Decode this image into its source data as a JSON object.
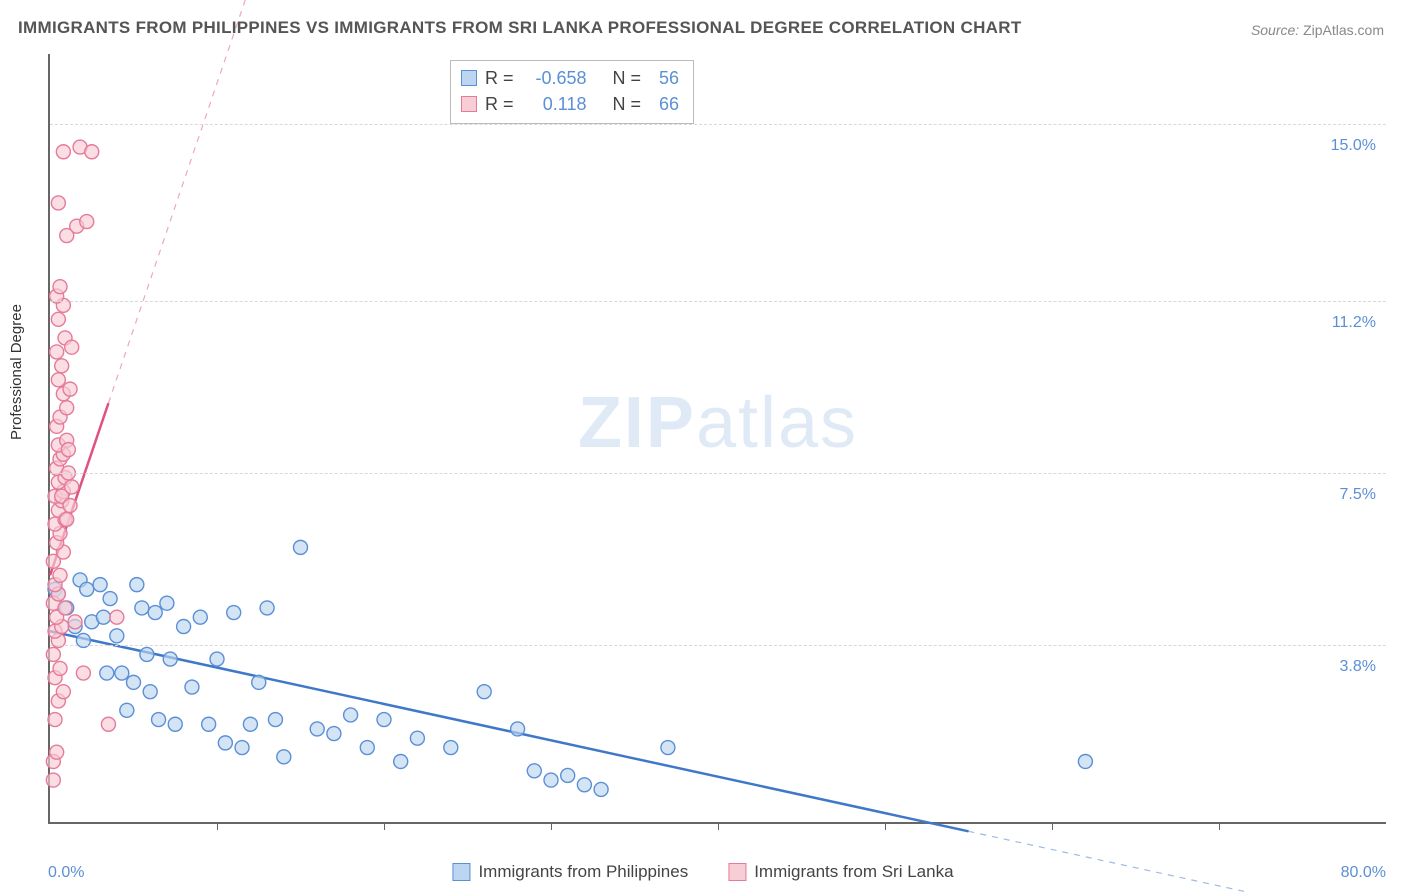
{
  "title": "IMMIGRANTS FROM PHILIPPINES VS IMMIGRANTS FROM SRI LANKA PROFESSIONAL DEGREE CORRELATION CHART",
  "source_label": "Source:",
  "source_value": "ZipAtlas.com",
  "watermark_a": "ZIP",
  "watermark_b": "atlas",
  "yaxis_label": "Professional Degree",
  "chart": {
    "type": "scatter",
    "xlim": [
      0,
      80
    ],
    "ylim": [
      0,
      16.5
    ],
    "x_min_label": "0.0%",
    "x_max_label": "80.0%",
    "ytick_values": [
      3.8,
      7.5,
      11.2,
      15.0
    ],
    "ytick_labels": [
      "3.8%",
      "7.5%",
      "11.2%",
      "15.0%"
    ],
    "xtick_values": [
      10,
      20,
      30,
      40,
      50,
      60,
      70
    ],
    "background_color": "#ffffff",
    "grid_color": "#d8d8d8",
    "axis_color": "#666666",
    "tick_label_color": "#5b8fd6",
    "marker_radius": 7,
    "marker_stroke_width": 1.4,
    "series": [
      {
        "name": "Immigrants from Philippines",
        "fill": "#bcd5f0",
        "stroke": "#5b8fd6",
        "fill_opacity": 0.65,
        "R": -0.658,
        "N": 56,
        "trend": {
          "x1": 0,
          "y1": 4.1,
          "x2": 55,
          "y2": -0.2,
          "stroke": "#3f78c9",
          "width": 2.5,
          "dash": "none",
          "extend_dash_to_x": 80
        },
        "points": [
          [
            0.3,
            5.0
          ],
          [
            0.5,
            4.9
          ],
          [
            1.0,
            4.6
          ],
          [
            1.5,
            4.2
          ],
          [
            1.8,
            5.2
          ],
          [
            2.0,
            3.9
          ],
          [
            2.2,
            5.0
          ],
          [
            2.5,
            4.3
          ],
          [
            3.0,
            5.1
          ],
          [
            3.2,
            4.4
          ],
          [
            3.4,
            3.2
          ],
          [
            3.6,
            4.8
          ],
          [
            4.0,
            4.0
          ],
          [
            4.3,
            3.2
          ],
          [
            4.6,
            2.4
          ],
          [
            5.0,
            3.0
          ],
          [
            5.2,
            5.1
          ],
          [
            5.5,
            4.6
          ],
          [
            5.8,
            3.6
          ],
          [
            6.0,
            2.8
          ],
          [
            6.3,
            4.5
          ],
          [
            6.5,
            2.2
          ],
          [
            7.0,
            4.7
          ],
          [
            7.2,
            3.5
          ],
          [
            7.5,
            2.1
          ],
          [
            8.0,
            4.2
          ],
          [
            8.5,
            2.9
          ],
          [
            9.0,
            4.4
          ],
          [
            9.5,
            2.1
          ],
          [
            10.0,
            3.5
          ],
          [
            10.5,
            1.7
          ],
          [
            11.0,
            4.5
          ],
          [
            11.5,
            1.6
          ],
          [
            12.0,
            2.1
          ],
          [
            12.5,
            3.0
          ],
          [
            13.0,
            4.6
          ],
          [
            13.5,
            2.2
          ],
          [
            14.0,
            1.4
          ],
          [
            15.0,
            5.9
          ],
          [
            16.0,
            2.0
          ],
          [
            17.0,
            1.9
          ],
          [
            18.0,
            2.3
          ],
          [
            19.0,
            1.6
          ],
          [
            20.0,
            2.2
          ],
          [
            21.0,
            1.3
          ],
          [
            22.0,
            1.8
          ],
          [
            24.0,
            1.6
          ],
          [
            26.0,
            2.8
          ],
          [
            28.0,
            2.0
          ],
          [
            29.0,
            1.1
          ],
          [
            30.0,
            0.9
          ],
          [
            31.0,
            1.0
          ],
          [
            32.0,
            0.8
          ],
          [
            33.0,
            0.7
          ],
          [
            37.0,
            1.6
          ],
          [
            62.0,
            1.3
          ]
        ]
      },
      {
        "name": "Immigrants from Sri Lanka",
        "fill": "#f7cdd6",
        "stroke": "#e67a9a",
        "fill_opacity": 0.65,
        "R": 0.118,
        "N": 66,
        "trend": {
          "x1": 0,
          "y1": 5.3,
          "x2": 3.5,
          "y2": 9.0,
          "stroke": "#e05080",
          "width": 2.5,
          "dash": "none",
          "extend_dash_to_x": 24
        },
        "points": [
          [
            0.2,
            0.9
          ],
          [
            0.2,
            1.3
          ],
          [
            0.4,
            1.5
          ],
          [
            0.3,
            2.2
          ],
          [
            0.5,
            2.6
          ],
          [
            0.8,
            2.8
          ],
          [
            0.3,
            3.1
          ],
          [
            0.6,
            3.3
          ],
          [
            0.2,
            3.6
          ],
          [
            0.5,
            3.9
          ],
          [
            0.3,
            4.1
          ],
          [
            0.7,
            4.2
          ],
          [
            0.4,
            4.4
          ],
          [
            0.2,
            4.7
          ],
          [
            0.5,
            4.9
          ],
          [
            0.9,
            4.6
          ],
          [
            0.3,
            5.1
          ],
          [
            0.6,
            5.3
          ],
          [
            0.2,
            5.6
          ],
          [
            0.8,
            5.8
          ],
          [
            0.4,
            6.0
          ],
          [
            0.6,
            6.2
          ],
          [
            0.3,
            6.4
          ],
          [
            0.9,
            6.5
          ],
          [
            0.5,
            6.7
          ],
          [
            0.7,
            6.9
          ],
          [
            0.3,
            7.0
          ],
          [
            0.8,
            7.1
          ],
          [
            0.5,
            7.3
          ],
          [
            0.9,
            7.4
          ],
          [
            0.4,
            7.6
          ],
          [
            1.1,
            7.5
          ],
          [
            0.6,
            7.8
          ],
          [
            0.8,
            7.9
          ],
          [
            0.5,
            8.1
          ],
          [
            1.0,
            8.2
          ],
          [
            0.7,
            7.0
          ],
          [
            1.2,
            6.8
          ],
          [
            1.0,
            6.5
          ],
          [
            1.3,
            7.2
          ],
          [
            1.1,
            8.0
          ],
          [
            0.4,
            8.5
          ],
          [
            0.6,
            8.7
          ],
          [
            1.0,
            8.9
          ],
          [
            0.8,
            9.2
          ],
          [
            0.5,
            9.5
          ],
          [
            1.2,
            9.3
          ],
          [
            0.7,
            9.8
          ],
          [
            0.4,
            10.1
          ],
          [
            0.9,
            10.4
          ],
          [
            1.3,
            10.2
          ],
          [
            0.5,
            10.8
          ],
          [
            0.8,
            11.1
          ],
          [
            0.4,
            11.3
          ],
          [
            0.6,
            11.5
          ],
          [
            1.6,
            12.8
          ],
          [
            2.2,
            12.9
          ],
          [
            0.5,
            13.3
          ],
          [
            1.0,
            12.6
          ],
          [
            0.8,
            14.4
          ],
          [
            1.8,
            14.5
          ],
          [
            2.5,
            14.4
          ],
          [
            1.5,
            4.3
          ],
          [
            2.0,
            3.2
          ],
          [
            3.5,
            2.1
          ],
          [
            4.0,
            4.4
          ]
        ]
      }
    ],
    "bottom_legend": [
      {
        "swatch": "blue",
        "label": "Immigrants from Philippines"
      },
      {
        "swatch": "pink",
        "label": "Immigrants from Sri Lanka"
      }
    ],
    "stats_box": [
      {
        "swatch": "blue",
        "R_label": "R =",
        "R": "-0.658",
        "N_label": "N =",
        "N": "56"
      },
      {
        "swatch": "pink",
        "R_label": "R =",
        "R": "0.118",
        "N_label": "N =",
        "N": "66"
      }
    ]
  }
}
